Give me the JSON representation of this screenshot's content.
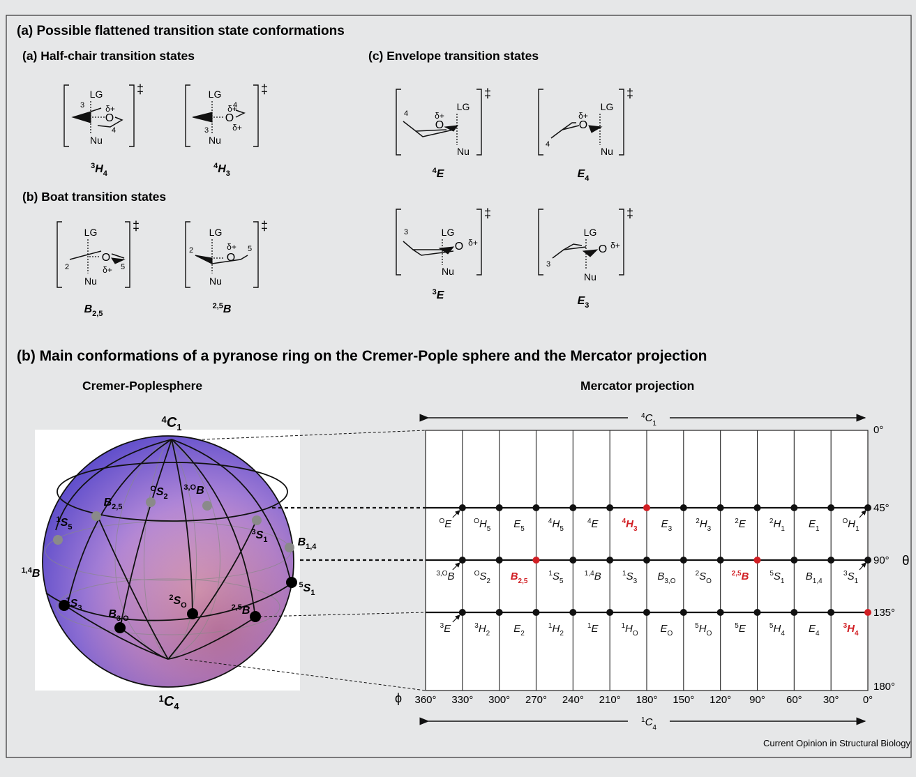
{
  "panel_a": {
    "title": "(a) Possible flattened transition state conformations",
    "half_chair": {
      "title": "(a) Half-chair transition states",
      "items": [
        {
          "label": "3H4",
          "sup": "3",
          "base": "H",
          "sub": "4"
        },
        {
          "label": "4H3",
          "sup": "4",
          "base": "H",
          "sub": "3"
        }
      ]
    },
    "boat": {
      "title": "(b) Boat transition states",
      "items": [
        {
          "label": "B2,5",
          "sup": "",
          "base": "B",
          "sub": "2,5"
        },
        {
          "label": "2,5B",
          "sup": "2,5",
          "base": "B",
          "sub": ""
        }
      ]
    },
    "envelope": {
      "title": "(c) Envelope transition states",
      "items": [
        {
          "label": "4E",
          "sup": "4",
          "base": "E",
          "sub": ""
        },
        {
          "label": "E4",
          "sup": "",
          "base": "E",
          "sub": "4"
        },
        {
          "label": "3E",
          "sup": "3",
          "base": "E",
          "sub": ""
        },
        {
          "label": "E3",
          "sup": "",
          "base": "E",
          "sub": "3"
        }
      ]
    },
    "atoms": {
      "lg": "LG",
      "nu": "Nu",
      "o": "O",
      "delta_plus": "δ+",
      "dagger": "‡",
      "n2": "2",
      "n3": "3",
      "n4": "4",
      "n5": "5"
    }
  },
  "panel_b": {
    "title": "(b) Main conformations of a pyranose ring on the Cremer-Pople sphere and the Mercator projection",
    "sphere_title": "Cremer-Poplesphere",
    "mercator_title": "Mercator projection",
    "sphere_labels": {
      "north": {
        "sup": "4",
        "base": "C",
        "sub": "1"
      },
      "south": {
        "sup": "1",
        "base": "C",
        "sub": "4"
      },
      "upper": [
        {
          "sup": "O",
          "base": "S",
          "sub": "2"
        },
        {
          "sup": "3,O",
          "base": "B",
          "sub": ""
        },
        {
          "sup": "",
          "base": "B",
          "sub": "2,5"
        },
        {
          "sup": "3",
          "base": "S",
          "sub": "1"
        },
        {
          "sup": "1",
          "base": "S",
          "sub": "5"
        },
        {
          "sup": "",
          "base": "B",
          "sub": "1,4"
        }
      ],
      "lower": [
        {
          "sup": "1,4",
          "base": "B",
          "sub": ""
        },
        {
          "sup": "5",
          "base": "S",
          "sub": "1"
        },
        {
          "sup": "1",
          "base": "S",
          "sub": "3"
        },
        {
          "sup": "",
          "base": "B",
          "sub": "3,O"
        },
        {
          "sup": "2",
          "base": "S",
          "sub": "O"
        },
        {
          "sup": "2,5",
          "base": "B",
          "sub": ""
        }
      ]
    },
    "mercator": {
      "top_arrow_label": {
        "sup": "4",
        "base": "C",
        "sub": "1"
      },
      "bottom_arrow_label": {
        "sup": "1",
        "base": "C",
        "sub": "4"
      },
      "phi_symbol": "ϕ",
      "theta_symbol": "θ",
      "phi_ticks": [
        "360°",
        "330°",
        "300°",
        "270°",
        "240°",
        "210°",
        "180°",
        "150°",
        "120°",
        "90°",
        "60°",
        "30°",
        "0°"
      ],
      "theta_ticks": [
        "0°",
        "45°",
        "90°",
        "135°",
        "180°"
      ],
      "rows": [
        {
          "theta": "45°",
          "labels": [
            {
              "sup": "O",
              "base": "E",
              "sub": "",
              "red": false
            },
            {
              "sup": "O",
              "base": "H",
              "sub": "5",
              "red": false
            },
            {
              "sup": "",
              "base": "E",
              "sub": "5",
              "red": false
            },
            {
              "sup": "4",
              "base": "H",
              "sub": "5",
              "red": false
            },
            {
              "sup": "4",
              "base": "E",
              "sub": "",
              "red": false
            },
            {
              "sup": "4",
              "base": "H",
              "sub": "3",
              "red": true
            },
            {
              "sup": "",
              "base": "E",
              "sub": "3",
              "red": false
            },
            {
              "sup": "2",
              "base": "H",
              "sub": "3",
              "red": false
            },
            {
              "sup": "2",
              "base": "E",
              "sub": "",
              "red": false
            },
            {
              "sup": "2",
              "base": "H",
              "sub": "1",
              "red": false
            },
            {
              "sup": "",
              "base": "E",
              "sub": "1",
              "red": false
            },
            {
              "sup": "O",
              "base": "H",
              "sub": "1",
              "red": false
            }
          ]
        },
        {
          "theta": "90°",
          "labels": [
            {
              "sup": "3,O",
              "base": "B",
              "sub": "",
              "red": false
            },
            {
              "sup": "O",
              "base": "S",
              "sub": "2",
              "red": false
            },
            {
              "sup": "",
              "base": "B",
              "sub": "2,5",
              "red": true
            },
            {
              "sup": "1",
              "base": "S",
              "sub": "5",
              "red": false
            },
            {
              "sup": "1,4",
              "base": "B",
              "sub": "",
              "red": false
            },
            {
              "sup": "1",
              "base": "S",
              "sub": "3",
              "red": false
            },
            {
              "sup": "",
              "base": "B",
              "sub": "3,O",
              "red": false
            },
            {
              "sup": "2",
              "base": "S",
              "sub": "O",
              "red": false
            },
            {
              "sup": "2,5",
              "base": "B",
              "sub": "",
              "red": true
            },
            {
              "sup": "5",
              "base": "S",
              "sub": "1",
              "red": false
            },
            {
              "sup": "",
              "base": "B",
              "sub": "1,4",
              "red": false
            },
            {
              "sup": "3",
              "base": "S",
              "sub": "1",
              "red": false
            }
          ]
        },
        {
          "theta": "135°",
          "labels": [
            {
              "sup": "3",
              "base": "E",
              "sub": "",
              "red": false
            },
            {
              "sup": "3",
              "base": "H",
              "sub": "2",
              "red": false
            },
            {
              "sup": "",
              "base": "E",
              "sub": "2",
              "red": false
            },
            {
              "sup": "1",
              "base": "H",
              "sub": "2",
              "red": false
            },
            {
              "sup": "1",
              "base": "E",
              "sub": "",
              "red": false
            },
            {
              "sup": "1",
              "base": "H",
              "sub": "O",
              "red": false
            },
            {
              "sup": "",
              "base": "E",
              "sub": "O",
              "red": false
            },
            {
              "sup": "5",
              "base": "H",
              "sub": "O",
              "red": false
            },
            {
              "sup": "5",
              "base": "E",
              "sub": "",
              "red": false
            },
            {
              "sup": "5",
              "base": "H",
              "sub": "4",
              "red": false
            },
            {
              "sup": "",
              "base": "E",
              "sub": "4",
              "red": false
            },
            {
              "sup": "3",
              "base": "H",
              "sub": "4",
              "red": true
            }
          ]
        }
      ]
    }
  },
  "credit": "Current Opinion in Structural Biology",
  "colors": {
    "background": "#e6e7e8",
    "highlight_red": "#d11f24",
    "point_black": "#111111",
    "sphere_grey_point": "#8a8a8a"
  }
}
